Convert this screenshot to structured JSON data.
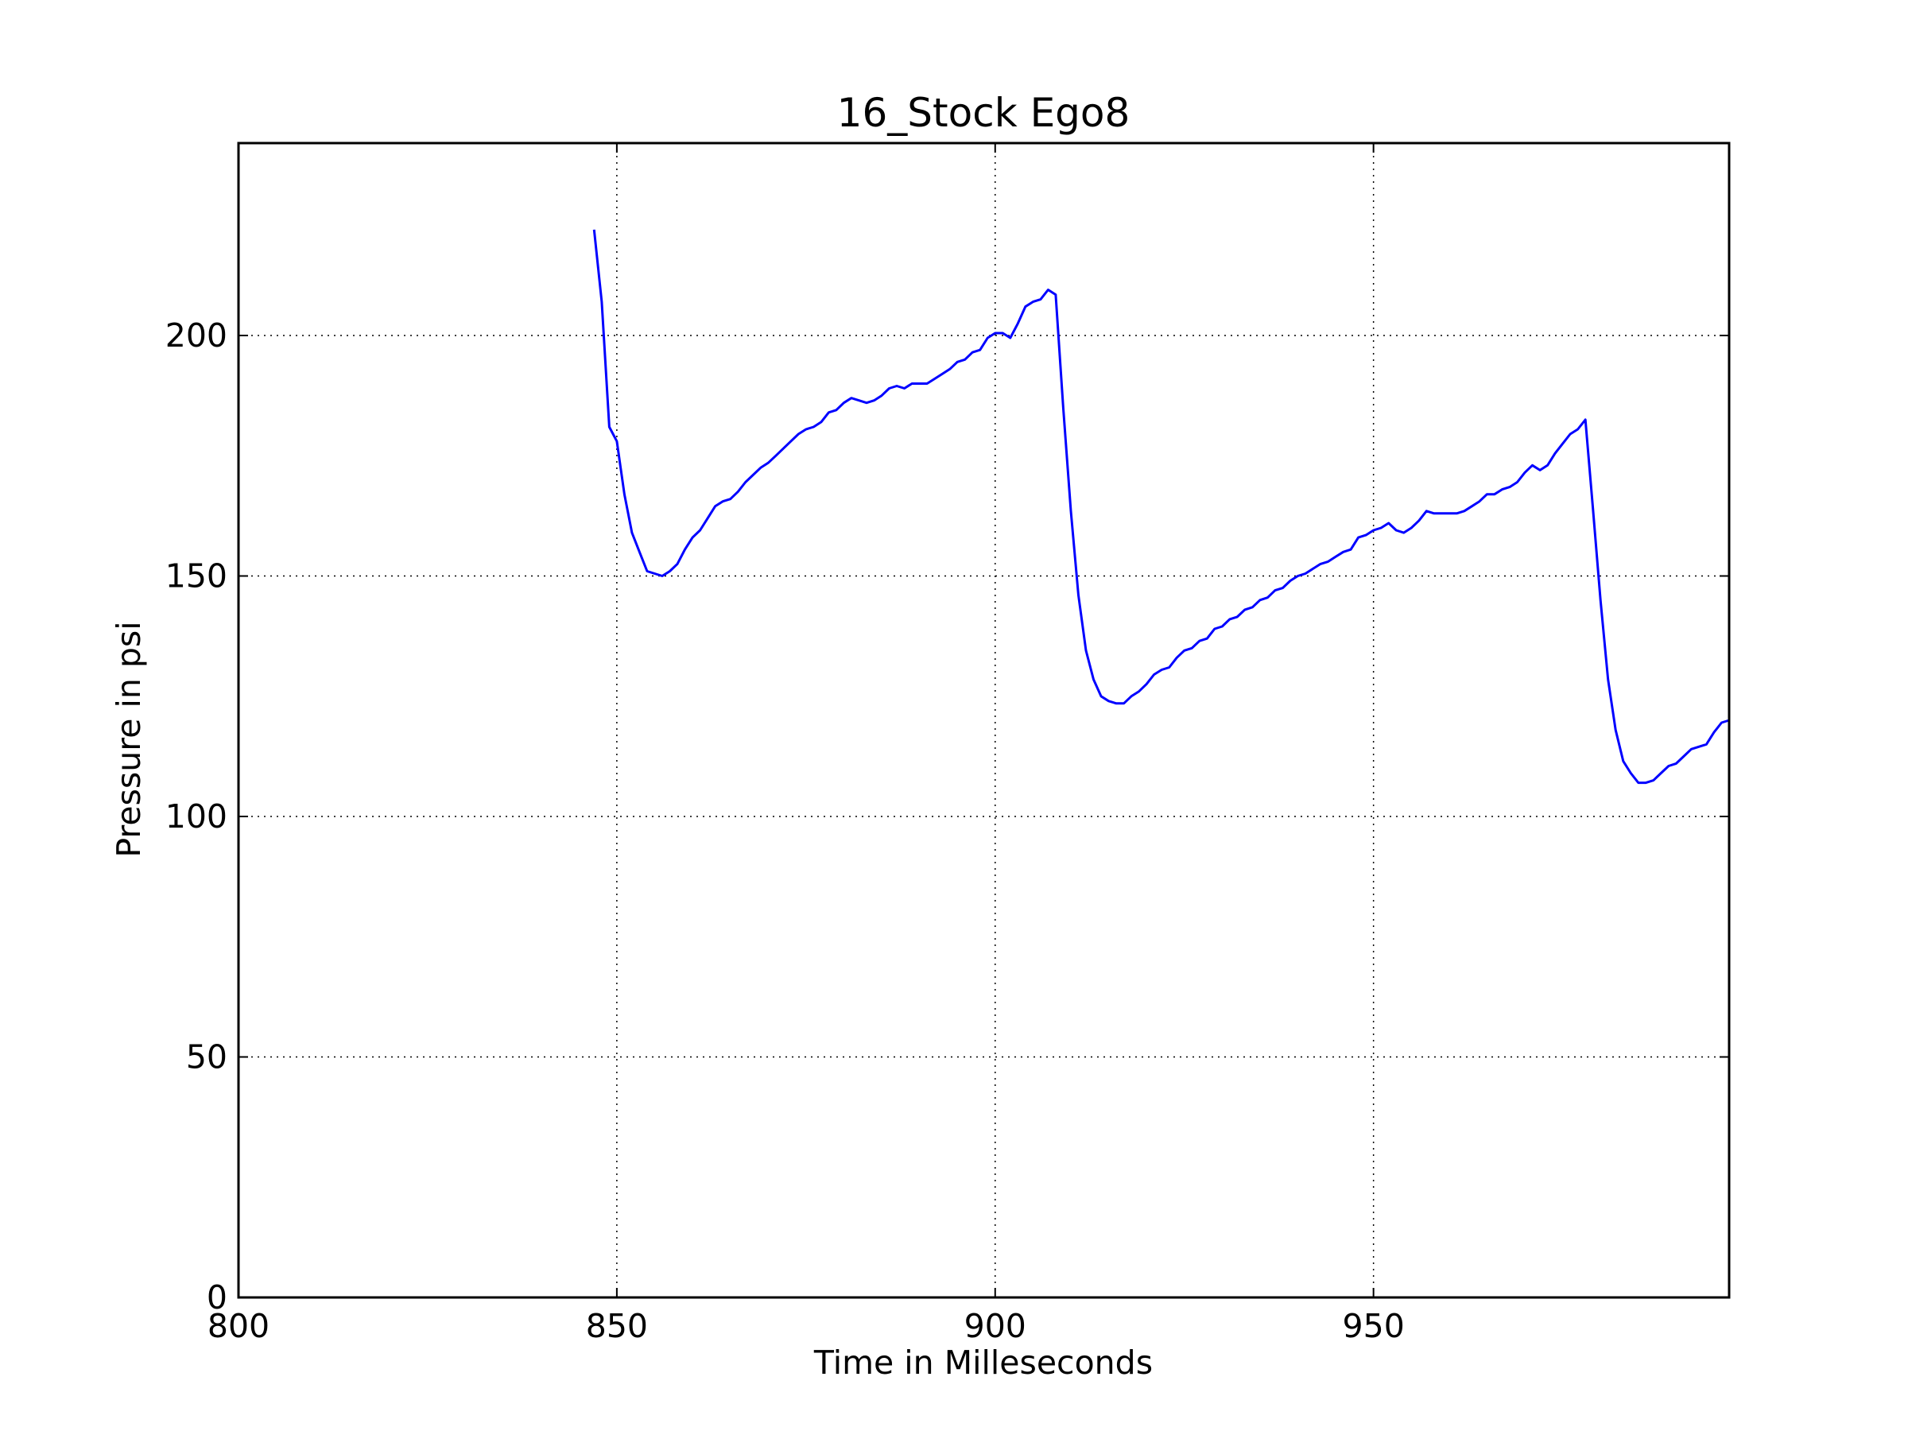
{
  "chart_data": {
    "type": "line",
    "title": "16_Stock Ego8",
    "xlabel": "Time in Milleseconds",
    "ylabel": "Pressure in psi",
    "xlim": [
      800,
      997
    ],
    "ylim": [
      0,
      240
    ],
    "xticks": [
      800,
      850,
      900,
      950
    ],
    "yticks": [
      0,
      50,
      100,
      150,
      200
    ],
    "grid": true,
    "legend": "none",
    "series": [
      {
        "color": "#0000ff",
        "x": [
          847,
          848,
          849,
          850,
          851,
          852,
          853,
          854,
          855,
          856,
          857,
          858,
          859,
          860,
          861,
          862,
          863,
          864,
          865,
          866,
          867,
          868,
          869,
          870,
          871,
          872,
          873,
          874,
          875,
          876,
          877,
          878,
          879,
          880,
          881,
          882,
          883,
          884,
          885,
          886,
          887,
          888,
          889,
          890,
          891,
          892,
          893,
          894,
          895,
          896,
          897,
          898,
          899,
          900,
          901,
          902,
          903,
          904,
          905,
          906,
          907,
          908,
          909,
          910,
          911,
          912,
          913,
          914,
          915,
          916,
          917,
          918,
          919,
          920,
          921,
          922,
          923,
          924,
          925,
          926,
          927,
          928,
          929,
          930,
          931,
          932,
          933,
          934,
          935,
          936,
          937,
          938,
          939,
          940,
          941,
          942,
          943,
          944,
          945,
          946,
          947,
          948,
          949,
          950,
          951,
          952,
          953,
          954,
          955,
          956,
          957,
          958,
          959,
          960,
          961,
          962,
          963,
          964,
          965,
          966,
          967,
          968,
          969,
          970,
          971,
          972,
          973,
          974,
          975,
          976,
          977,
          978,
          979,
          980,
          981,
          982,
          983,
          984,
          985,
          986,
          987,
          988,
          989,
          990,
          991,
          992,
          993,
          994,
          995,
          996,
          997
        ],
        "y": [
          222,
          207,
          181,
          178,
          167,
          159,
          155,
          151,
          150.5,
          150,
          151,
          152.5,
          155.5,
          158,
          159.5,
          162,
          164.5,
          165.5,
          166,
          167.5,
          169.5,
          171,
          172.5,
          173.5,
          175,
          176.5,
          178,
          179.5,
          180.5,
          181,
          182,
          184,
          184.5,
          186,
          187,
          186.5,
          186,
          186.5,
          187.5,
          189,
          189.5,
          189,
          190,
          190,
          190,
          191,
          192,
          193,
          194.5,
          195,
          196.5,
          197,
          199.5,
          200.5,
          200.5,
          199.5,
          202.5,
          206,
          207,
          207.5,
          209.5,
          208.5,
          185,
          163.5,
          146,
          134.5,
          128.5,
          125,
          124,
          123.5,
          123.5,
          125,
          126,
          127.5,
          129.5,
          130.5,
          131,
          133,
          134.5,
          135,
          136.5,
          137,
          139,
          139.5,
          141,
          141.5,
          143,
          143.5,
          145,
          145.5,
          147,
          147.5,
          149,
          150,
          150.5,
          151.5,
          152.5,
          153,
          154,
          155,
          155.5,
          158,
          158.5,
          159.5,
          160,
          161,
          159.5,
          159,
          160,
          161.5,
          163.5,
          163,
          163,
          163,
          163,
          163.5,
          164.5,
          165.5,
          167,
          167,
          168,
          168.5,
          169.5,
          171.5,
          173,
          172,
          173,
          175.5,
          177.5,
          179.5,
          180.5,
          182.5,
          164,
          145,
          128.5,
          118,
          111.5,
          109,
          107,
          107,
          107.5,
          109,
          110.5,
          111,
          112.5,
          114,
          114.5,
          115,
          117.5,
          119.5,
          120
        ]
      }
    ]
  }
}
